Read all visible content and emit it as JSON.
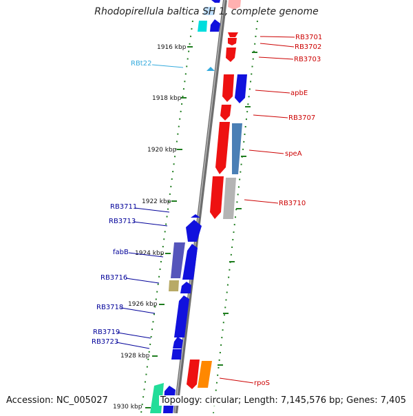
{
  "title": "Rhodopirellula baltica SH 1, complete genome",
  "accession": "Accession: NC_005027",
  "topology": "Topology: circular; Length: 7,145,576 bp; Genes: 7,405",
  "colors": {
    "backbone": "#808080",
    "tick": "#1e7d1e",
    "kbp_text": "#111111",
    "label_right": "#cc0000",
    "label_left": "#000099",
    "label_rna": "#33aadd"
  },
  "kbp_ticks": [
    {
      "kbp": 1916,
      "label": "1916 kbp"
    },
    {
      "kbp": 1918,
      "label": "1918 kbp"
    },
    {
      "kbp": 1920,
      "label": "1920 kbp"
    },
    {
      "kbp": 1922,
      "label": "1922 kbp"
    },
    {
      "kbp": 1924,
      "label": "1924 kbp"
    },
    {
      "kbp": 1926,
      "label": "1926 kbp"
    },
    {
      "kbp": 1928,
      "label": "1928 kbp"
    },
    {
      "kbp": 1930,
      "label": "1930 kbp"
    }
  ],
  "gene_labels": [
    {
      "text": "RB3701",
      "side": "right",
      "color": "#cc0000"
    },
    {
      "text": "RB3702",
      "side": "right",
      "color": "#cc0000"
    },
    {
      "text": "RB3703",
      "side": "right",
      "color": "#cc0000"
    },
    {
      "text": "apbE",
      "side": "right",
      "color": "#cc0000"
    },
    {
      "text": "RB3707",
      "side": "right",
      "color": "#cc0000"
    },
    {
      "text": "speA",
      "side": "right",
      "color": "#cc0000"
    },
    {
      "text": "RB3710",
      "side": "right",
      "color": "#cc0000"
    },
    {
      "text": "rpoS",
      "side": "right",
      "color": "#cc0000"
    },
    {
      "text": "RBt22",
      "side": "left",
      "color": "#33aadd"
    },
    {
      "text": "RB3711",
      "side": "left",
      "color": "#000099"
    },
    {
      "text": "RB3713",
      "side": "left",
      "color": "#000099"
    },
    {
      "text": "fabB",
      "side": "left",
      "color": "#000099"
    },
    {
      "text": "RB3716",
      "side": "left",
      "color": "#000099"
    },
    {
      "text": "RB3718",
      "side": "left",
      "color": "#000099"
    },
    {
      "text": "RB3719",
      "side": "left",
      "color": "#000099"
    },
    {
      "text": "RB3723",
      "side": "left",
      "color": "#000099"
    }
  ]
}
